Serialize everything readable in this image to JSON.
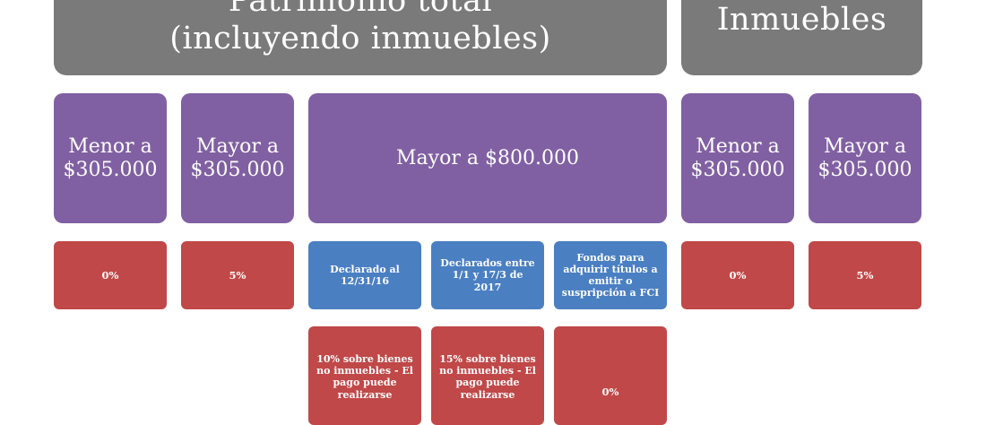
{
  "headers": {
    "left_line1": "Patrimonio total",
    "left_line2": "(incluyendo inmuebles)",
    "right": "Inmuebles"
  },
  "thresholds": {
    "left_menor_1": "Menor a",
    "left_menor_2": "$305.000",
    "left_mayor_1": "Mayor a",
    "left_mayor_2": "$305.000",
    "mayor_800": "Mayor a $800.000",
    "right_menor_1": "Menor a",
    "right_menor_2": "$305.000",
    "right_mayor_1": "Mayor a",
    "right_mayor_2": "$305.000"
  },
  "rates": {
    "left_menor": "0%",
    "left_mayor": "5%",
    "right_menor": "0%",
    "right_mayor": "5%"
  },
  "categories": {
    "declarado_1216": "Declarado al 12/31/16",
    "declarados_2017": "Declarados entre 1/1 y 17/3 de 2017",
    "fondos_fci": "Fondos para adquirir títulos a emitir o suspripción a FCI"
  },
  "category_rates": {
    "rate_10": "10% sobre bienes no inmuebles - El pago puede realizarse",
    "rate_15": "15% sobre bienes no inmuebles - El pago puede realizarse",
    "rate_0": "0%"
  },
  "colors": {
    "header": "#7a7a7a",
    "threshold": "#8060a2",
    "rate": "#c04848",
    "category": "#4a7fc2"
  }
}
